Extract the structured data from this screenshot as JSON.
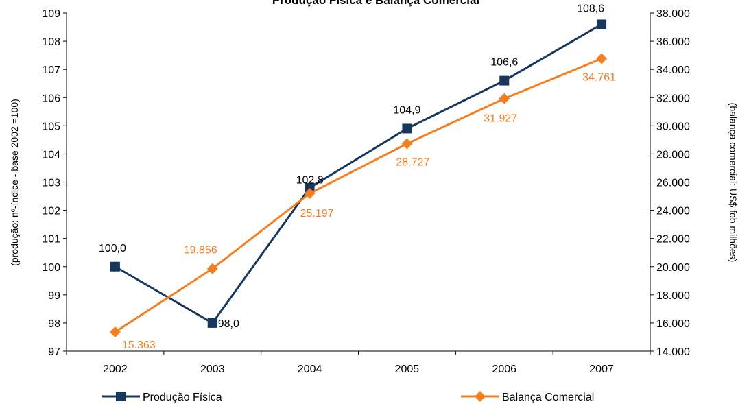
{
  "chart_data": {
    "type": "line",
    "title": "Produção Física e Balança Comercial",
    "categories": [
      "2002",
      "2003",
      "2004",
      "2005",
      "2006",
      "2007"
    ],
    "y_left": {
      "label": "(produção: nº-índice - base 2002 =100)",
      "range": [
        97,
        109
      ],
      "ticks": [
        "97",
        "98",
        "99",
        "100",
        "101",
        "102",
        "103",
        "104",
        "105",
        "106",
        "107",
        "108",
        "109"
      ]
    },
    "y_right": {
      "label": "(balança comercial: US$ fob milhões)",
      "range": [
        14000,
        38000
      ],
      "ticks": [
        "14.000",
        "16.000",
        "18.000",
        "20.000",
        "22.000",
        "24.000",
        "26.000",
        "28.000",
        "30.000",
        "32.000",
        "34.000",
        "36.000",
        "38.000"
      ]
    },
    "series": [
      {
        "name": "Produção Física",
        "axis": "left",
        "color": "#17375E",
        "marker": "square",
        "values": [
          100.0,
          98.0,
          102.8,
          104.9,
          106.6,
          108.6
        ],
        "labels": [
          "100,0",
          "98,0",
          "102,8",
          "104,9",
          "106,6",
          "108,6"
        ]
      },
      {
        "name": "Balança Comercial",
        "axis": "right",
        "color": "#F57F20",
        "marker": "diamond",
        "values": [
          15363,
          19856,
          25197,
          28727,
          31927,
          34761
        ],
        "labels": [
          "15.363",
          "19.856",
          "25.197",
          "28.727",
          "31.927",
          "34.761"
        ]
      }
    ],
    "grid": false,
    "legend": "bottom"
  }
}
